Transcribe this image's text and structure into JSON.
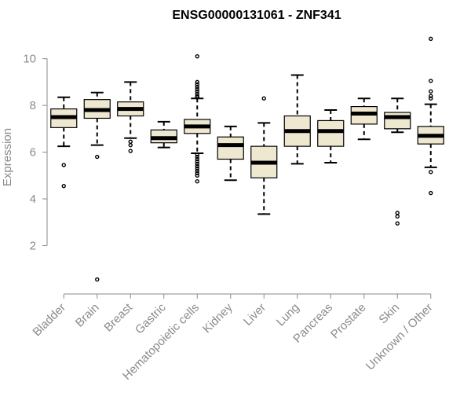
{
  "chart_data": {
    "type": "box",
    "title": "ENSG00000131061 - ZNF341",
    "xlabel": "",
    "ylabel": "Expression",
    "ylim": [
      0.2,
      11.3
    ],
    "yticks": [
      2,
      4,
      6,
      8,
      10
    ],
    "grid": false,
    "colors": {
      "box_fill": "#efe8d1",
      "box_stroke": "#000000",
      "axis": "#8a8a8a"
    },
    "categories": [
      "Bladder",
      "Brain",
      "Breast",
      "Gastric",
      "Hematopoietic cells",
      "Kidney",
      "Liver",
      "Lung",
      "Pancreas",
      "Prostate",
      "Skin",
      "Unknown / Other"
    ],
    "boxes": [
      {
        "name": "Bladder",
        "whisker_low": 6.25,
        "q1": 7.05,
        "median": 7.5,
        "q3": 7.85,
        "whisker_high": 8.35,
        "outliers": [
          5.45,
          4.55
        ]
      },
      {
        "name": "Brain",
        "whisker_low": 6.3,
        "q1": 7.45,
        "median": 7.8,
        "q3": 8.25,
        "whisker_high": 8.55,
        "outliers": [
          5.8,
          0.55
        ]
      },
      {
        "name": "Breast",
        "whisker_low": 6.6,
        "q1": 7.55,
        "median": 7.85,
        "q3": 8.15,
        "whisker_high": 9.0,
        "outliers": [
          6.45,
          6.3,
          6.05
        ]
      },
      {
        "name": "Gastric",
        "whisker_low": 6.2,
        "q1": 6.4,
        "median": 6.6,
        "q3": 6.95,
        "whisker_high": 7.3,
        "outliers": []
      },
      {
        "name": "Hematopoietic cells",
        "whisker_low": 5.95,
        "q1": 6.8,
        "median": 7.1,
        "q3": 7.4,
        "whisker_high": 8.3,
        "outliers": [
          10.1,
          9.0,
          8.9,
          8.8,
          8.7,
          8.6,
          8.5,
          8.4,
          8.35,
          5.9,
          5.8,
          5.7,
          5.6,
          5.5,
          5.4,
          5.3,
          5.2,
          5.1,
          5.0,
          4.75
        ]
      },
      {
        "name": "Kidney",
        "whisker_low": 4.8,
        "q1": 5.7,
        "median": 6.3,
        "q3": 6.65,
        "whisker_high": 7.1,
        "outliers": []
      },
      {
        "name": "Liver",
        "whisker_low": 3.35,
        "q1": 4.9,
        "median": 5.55,
        "q3": 6.25,
        "whisker_high": 7.25,
        "outliers": [
          8.3
        ]
      },
      {
        "name": "Lung",
        "whisker_low": 5.5,
        "q1": 6.25,
        "median": 6.9,
        "q3": 7.55,
        "whisker_high": 9.3,
        "outliers": []
      },
      {
        "name": "Pancreas",
        "whisker_low": 5.55,
        "q1": 6.25,
        "median": 6.9,
        "q3": 7.35,
        "whisker_high": 7.8,
        "outliers": []
      },
      {
        "name": "Prostate",
        "whisker_low": 6.55,
        "q1": 7.2,
        "median": 7.65,
        "q3": 7.95,
        "whisker_high": 8.3,
        "outliers": []
      },
      {
        "name": "Skin",
        "whisker_low": 6.85,
        "q1": 7.0,
        "median": 7.5,
        "q3": 7.7,
        "whisker_high": 8.3,
        "outliers": [
          3.4,
          3.25,
          2.95
        ]
      },
      {
        "name": "Unknown / Other",
        "whisker_low": 5.35,
        "q1": 6.35,
        "median": 6.7,
        "q3": 7.1,
        "whisker_high": 8.05,
        "outliers": [
          10.85,
          9.05,
          8.6,
          8.4,
          8.3,
          5.15,
          4.25
        ]
      }
    ]
  }
}
